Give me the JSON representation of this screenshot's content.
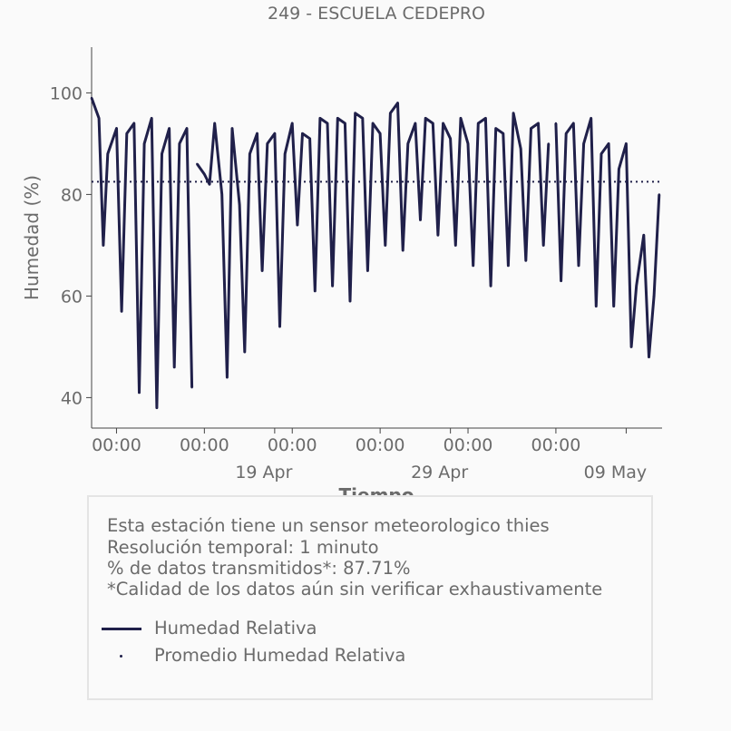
{
  "colors": {
    "series": "#20204a",
    "text": "#6b6b6b",
    "axis": "#444444"
  },
  "chart_data": {
    "type": "line",
    "title": "249 - ESCUELA CEDEPRO",
    "xlabel": "Tiempo",
    "ylabel": "Humedad (%)",
    "ylim": [
      34,
      109
    ],
    "xlim": [
      "2025-04-08 14:00",
      "2025-05-11 01:00"
    ],
    "y_ticks": [
      40,
      60,
      80,
      100
    ],
    "x_ticks": [
      {
        "time": "2025-04-10 00:00",
        "label": "00:00",
        "date_label": ""
      },
      {
        "time": "2025-04-15 00:00",
        "label": "00:00",
        "date_label": ""
      },
      {
        "time": "2025-04-19 00:00",
        "label": "",
        "date_label": "19 Apr"
      },
      {
        "time": "2025-04-20 00:00",
        "label": "00:00",
        "date_label": ""
      },
      {
        "time": "2025-04-25 00:00",
        "label": "00:00",
        "date_label": ""
      },
      {
        "time": "2025-04-29 00:00",
        "label": "",
        "date_label": "29 Apr"
      },
      {
        "time": "2025-04-30 00:00",
        "label": "00:00",
        "date_label": ""
      },
      {
        "time": "2025-05-05 00:00",
        "label": "00:00",
        "date_label": ""
      },
      {
        "time": "2025-05-09 00:00",
        "label": "",
        "date_label": "09 May"
      }
    ],
    "series": [
      {
        "name": "Humedad Relativa",
        "style": "solid",
        "x": [
          "2025-04-08 14:00",
          "2025-04-09 00:00",
          "2025-04-09 06:00",
          "2025-04-09 12:00",
          "2025-04-10 00:00",
          "2025-04-10 07:00",
          "2025-04-10 14:00",
          "2025-04-11 00:00",
          "2025-04-11 07:00",
          "2025-04-11 14:00",
          "2025-04-12 00:00",
          "2025-04-12 07:00",
          "2025-04-12 14:00",
          "2025-04-13 00:00",
          "2025-04-13 07:00",
          "2025-04-13 14:00",
          "2025-04-14 00:00",
          "2025-04-14 07:00",
          "2025-04-14 14:00",
          "2025-04-15 00:00",
          "2025-04-15 07:00",
          "2025-04-15 14:00",
          "2025-04-16 00:00",
          "2025-04-16 07:00",
          "2025-04-16 14:00",
          "2025-04-17 00:00",
          "2025-04-17 07:00",
          "2025-04-17 14:00",
          "2025-04-18 00:00",
          "2025-04-18 07:00",
          "2025-04-18 14:00",
          "2025-04-19 00:00",
          "2025-04-19 07:00",
          "2025-04-19 14:00",
          "2025-04-20 00:00",
          "2025-04-20 07:00",
          "2025-04-20 14:00",
          "2025-04-21 00:00",
          "2025-04-21 07:00",
          "2025-04-21 14:00",
          "2025-04-22 00:00",
          "2025-04-22 07:00",
          "2025-04-22 14:00",
          "2025-04-23 00:00",
          "2025-04-23 07:00",
          "2025-04-23 14:00",
          "2025-04-24 00:00",
          "2025-04-24 07:00",
          "2025-04-24 14:00",
          "2025-04-25 00:00",
          "2025-04-25 07:00",
          "2025-04-25 14:00",
          "2025-04-26 00:00",
          "2025-04-26 07:00",
          "2025-04-26 14:00",
          "2025-04-27 00:00",
          "2025-04-27 07:00",
          "2025-04-27 14:00",
          "2025-04-28 00:00",
          "2025-04-28 07:00",
          "2025-04-28 14:00",
          "2025-04-29 00:00",
          "2025-04-29 07:00",
          "2025-04-29 14:00",
          "2025-04-30 00:00",
          "2025-04-30 07:00",
          "2025-04-30 14:00",
          "2025-05-01 00:00",
          "2025-05-01 07:00",
          "2025-05-01 14:00",
          "2025-05-02 00:00",
          "2025-05-02 07:00",
          "2025-05-02 14:00",
          "2025-05-03 00:00",
          "2025-05-03 07:00",
          "2025-05-03 14:00",
          "2025-05-04 00:00",
          "2025-05-04 07:00",
          "2025-05-04 14:00",
          "2025-05-05 00:00",
          "2025-05-05 07:00",
          "2025-05-05 14:00",
          "2025-05-06 00:00",
          "2025-05-06 07:00",
          "2025-05-06 14:00",
          "2025-05-07 00:00",
          "2025-05-07 07:00",
          "2025-05-07 14:00",
          "2025-05-08 00:00",
          "2025-05-08 07:00",
          "2025-05-08 14:00",
          "2025-05-09 00:00",
          "2025-05-09 07:00",
          "2025-05-09 14:00",
          "2025-05-10 00:00",
          "2025-05-10 07:00",
          "2025-05-10 14:00",
          "2025-05-10 21:00"
        ],
        "y": [
          99,
          95,
          70,
          88,
          93,
          57,
          92,
          94,
          41,
          90,
          95,
          38,
          88,
          93,
          46,
          90,
          93,
          42,
          86,
          84,
          82,
          94,
          80,
          44,
          93,
          78,
          49,
          88,
          92,
          65,
          90,
          92,
          54,
          88,
          94,
          74,
          92,
          91,
          61,
          95,
          94,
          62,
          95,
          94,
          59,
          96,
          95,
          65,
          94,
          92,
          70,
          96,
          98,
          69,
          90,
          94,
          75,
          95,
          94,
          72,
          94,
          91,
          70,
          95,
          90,
          66,
          94,
          95,
          62,
          93,
          92,
          66,
          96,
          89,
          67,
          93,
          94,
          70,
          90,
          94,
          63,
          92,
          94,
          66,
          90,
          95,
          58,
          88,
          90,
          58,
          85,
          90,
          50,
          62,
          72,
          48,
          60,
          80
        ],
        "gaps_after": [
          "2025-04-14 07:00",
          "2025-05-04 14:00"
        ]
      },
      {
        "name": "Promedio Humedad Relativa",
        "style": "dotted",
        "value": 82.5
      }
    ]
  },
  "legend": {
    "notes": [
      "Esta estación tiene un sensor meteorologico thies",
      "Resolución temporal: 1 minuto",
      "% de datos transmitidos*: 87.71%",
      "*Calidad de los datos aún sin verificar exhaustivamente"
    ],
    "series_labels": [
      "Humedad Relativa",
      "Promedio Humedad Relativa"
    ]
  }
}
